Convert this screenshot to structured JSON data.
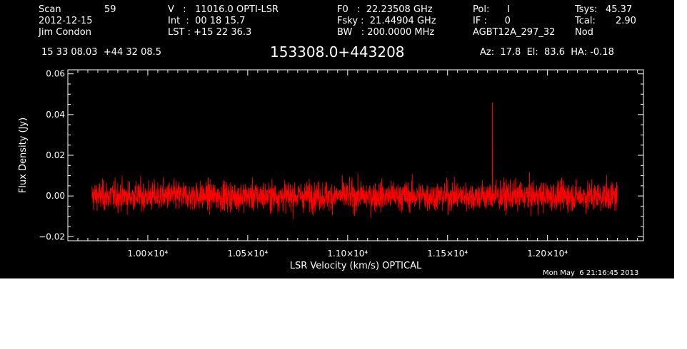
{
  "header": {
    "scan_label": "Scan",
    "scan_value": "59",
    "date": "2012-12-15",
    "observer": "Jim Condon",
    "v_line": "V   :   11016.0 OPTI-LSR",
    "int_line": "Int  :  00 18 15.7",
    "lst_line": "LST : +15 22 36.3",
    "f0_line": "F0   :  22.23508 GHz",
    "fsky_line": "Fsky :  21.44904 GHz",
    "bw_line": "BW   : 200.0000 MHz",
    "pol_line": "Pol:      I",
    "if_line": "IF :      0",
    "project": "AGBT12A_297_32",
    "tsys_label": "Tsys:",
    "tsys_value": "45.37",
    "tcal_label": "Tcal:",
    "tcal_value": "2.90",
    "mode": "Nod",
    "coords": "15 33 08.03  +44 32 08.5",
    "source": "153308.0+443208",
    "azel": "Az:  17.8  El:  83.6  HA: -0.18",
    "timestamp": "Mon May  6 21:16:45 2013"
  },
  "chart_data": {
    "type": "line",
    "xlabel": "LSR Velocity (km/s) OPTICAL",
    "ylabel": "Flux Density (Jy)",
    "xlim": [
      9600,
      12480
    ],
    "ylim": [
      -0.022,
      0.062
    ],
    "x_ticks": [
      {
        "value": 10000,
        "label": "1.00×10⁴"
      },
      {
        "value": 10500,
        "label": "1.05×10⁴"
      },
      {
        "value": 11000,
        "label": "1.10×10⁴"
      },
      {
        "value": 11500,
        "label": "1.15×10⁴"
      },
      {
        "value": 12000,
        "label": "1.20×10⁴"
      }
    ],
    "y_ticks": [
      {
        "value": -0.02,
        "label": "−0.02"
      },
      {
        "value": 0.0,
        "label": "0.00"
      },
      {
        "value": 0.02,
        "label": "0.02"
      },
      {
        "value": 0.04,
        "label": "0.04"
      },
      {
        "value": 0.06,
        "label": "0.06"
      }
    ],
    "series": [
      {
        "color": "#ff0000",
        "x_start": 9720,
        "x_end": 12350,
        "baseline": 0.0,
        "noise_rms": 0.004,
        "x": [
          9720,
          9850,
          10000,
          10150,
          10300,
          10450,
          10600,
          10750,
          10900,
          11050,
          11200,
          11350,
          11500,
          11650,
          11720,
          11725,
          11730,
          11800,
          11950,
          12100,
          12250,
          12350
        ],
        "y": [
          0.008,
          -0.006,
          0.007,
          -0.008,
          0.006,
          -0.007,
          0.009,
          -0.006,
          0.007,
          -0.008,
          0.006,
          -0.007,
          0.008,
          -0.006,
          0.004,
          0.046,
          0.003,
          -0.008,
          0.007,
          -0.006,
          0.008,
          0.005
        ]
      }
    ],
    "spike": {
      "x": 11725,
      "y": 0.046
    },
    "grid": false,
    "background": "#000000",
    "axis_color": "#ffffff"
  }
}
